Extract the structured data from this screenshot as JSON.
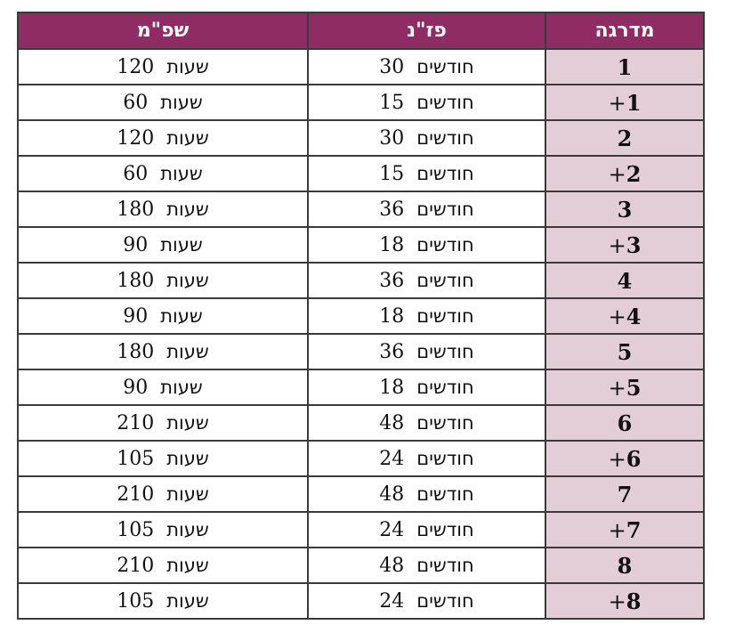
{
  "headers": {
    "shpm": "שפ\"מ",
    "pazan": "פז\"נ",
    "level": "מדרגה"
  },
  "rows": [
    {
      "level_num": "1",
      "level_plus": "",
      "pazan_value": "30",
      "pazan_unit": "חודשים",
      "shpm_value": "120",
      "shpm_unit": "שעות"
    },
    {
      "level_num": "1",
      "level_plus": "+",
      "pazan_value": "15",
      "pazan_unit": "חודשים",
      "shpm_value": "60",
      "shpm_unit": "שעות"
    },
    {
      "level_num": "2",
      "level_plus": "",
      "pazan_value": "30",
      "pazan_unit": "חודשים",
      "shpm_value": "120",
      "shpm_unit": "שעות"
    },
    {
      "level_num": "2",
      "level_plus": "+",
      "pazan_value": "15",
      "pazan_unit": "חודשים",
      "shpm_value": "60",
      "shpm_unit": "שעות"
    },
    {
      "level_num": "3",
      "level_plus": "",
      "pazan_value": "36",
      "pazan_unit": "חודשים",
      "shpm_value": "180",
      "shpm_unit": "שעות"
    },
    {
      "level_num": "3",
      "level_plus": "+",
      "pazan_value": "18",
      "pazan_unit": "חודשים",
      "shpm_value": "90",
      "shpm_unit": "שעות"
    },
    {
      "level_num": "4",
      "level_plus": "",
      "pazan_value": "36",
      "pazan_unit": "חודשים",
      "shpm_value": "180",
      "shpm_unit": "שעות"
    },
    {
      "level_num": "4",
      "level_plus": "+",
      "pazan_value": "18",
      "pazan_unit": "חודשים",
      "shpm_value": "90",
      "shpm_unit": "שעות"
    },
    {
      "level_num": "5",
      "level_plus": "",
      "pazan_value": "36",
      "pazan_unit": "חודשים",
      "shpm_value": "180",
      "shpm_unit": "שעות"
    },
    {
      "level_num": "5",
      "level_plus": "+",
      "pazan_value": "18",
      "pazan_unit": "חודשים",
      "shpm_value": "90",
      "shpm_unit": "שעות"
    },
    {
      "level_num": "6",
      "level_plus": "",
      "pazan_value": "48",
      "pazan_unit": "חודשים",
      "shpm_value": "210",
      "shpm_unit": "שעות"
    },
    {
      "level_num": "6",
      "level_plus": "+",
      "pazan_value": "24",
      "pazan_unit": "חודשים",
      "shpm_value": "105",
      "shpm_unit": "שעות"
    },
    {
      "level_num": "7",
      "level_plus": "",
      "pazan_value": "48",
      "pazan_unit": "חודשים",
      "shpm_value": "210",
      "shpm_unit": "שעות"
    },
    {
      "level_num": "7",
      "level_plus": "+",
      "pazan_value": "24",
      "pazan_unit": "חודשים",
      "shpm_value": "105",
      "shpm_unit": "שעות"
    },
    {
      "level_num": "8",
      "level_plus": "",
      "pazan_value": "48",
      "pazan_unit": "חודשים",
      "shpm_value": "210",
      "shpm_unit": "שעות"
    },
    {
      "level_num": "8",
      "level_plus": "+",
      "pazan_value": "24",
      "pazan_unit": "חודשים",
      "shpm_value": "105",
      "shpm_unit": "שעות"
    }
  ],
  "colors": {
    "header_bg": "#8e2c63",
    "level_bg": "#e3cdd6",
    "border": "#3a3a3a"
  }
}
